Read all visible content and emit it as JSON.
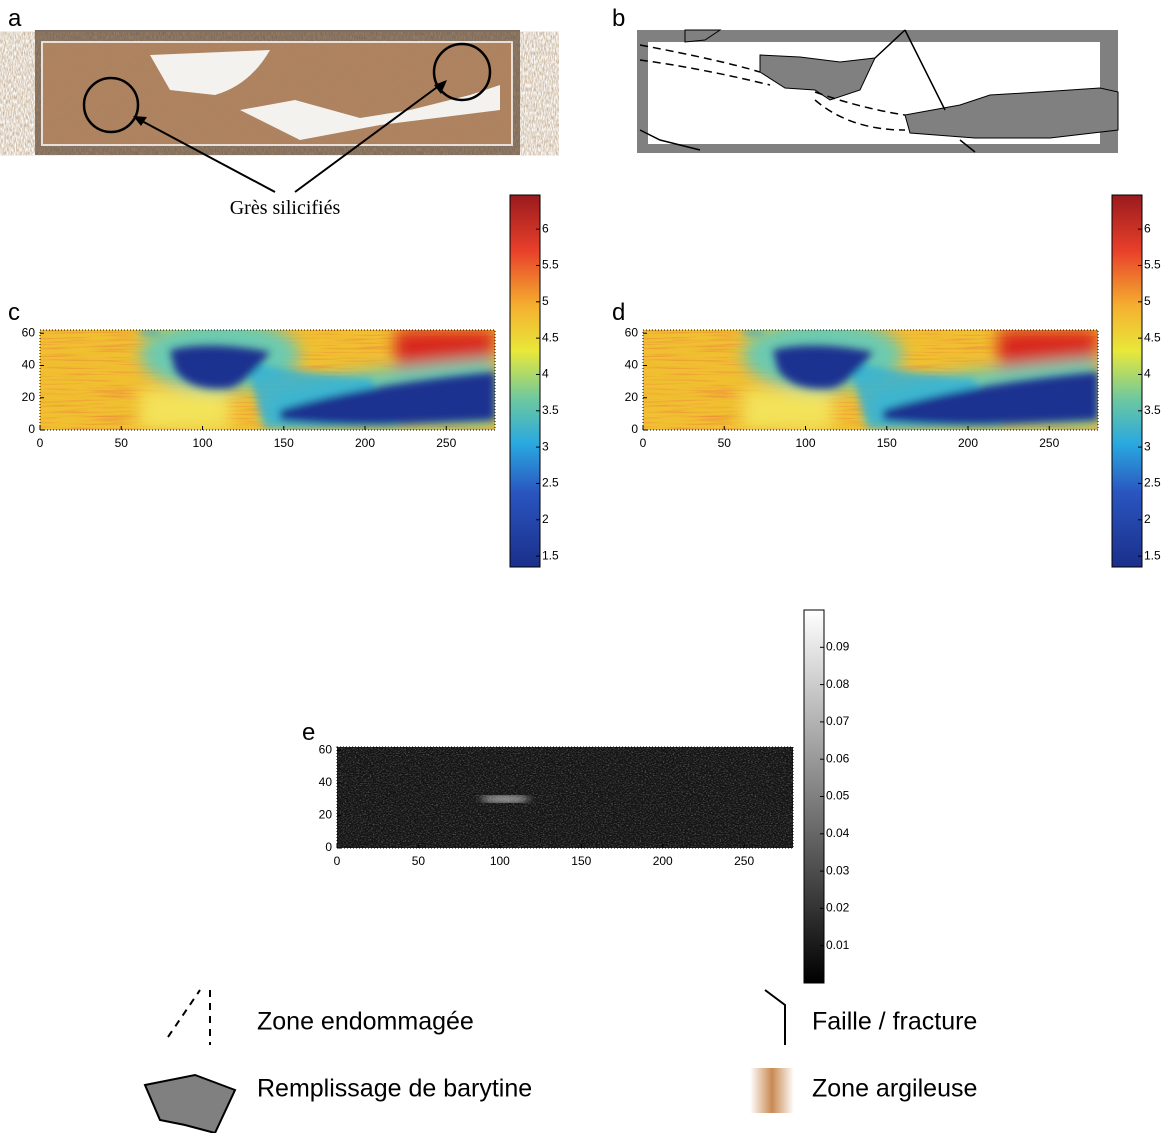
{
  "panels": {
    "a": {
      "label": "a",
      "annotation": "Grès silicifiés"
    },
    "b": {
      "label": "b"
    },
    "c": {
      "label": "c",
      "xlim": [
        0,
        280
      ],
      "ylim": [
        0,
        62
      ],
      "xticks": [
        0,
        50,
        100,
        150,
        200,
        250
      ],
      "yticks": [
        0,
        20,
        40,
        60
      ],
      "colorbar_lim": [
        1.35,
        6.47
      ],
      "colorbar_ticks": [
        1.5,
        2,
        2.5,
        3,
        3.5,
        4,
        4.5,
        5,
        5.5,
        6
      ]
    },
    "d": {
      "label": "d",
      "xlim": [
        0,
        280
      ],
      "ylim": [
        0,
        62
      ],
      "xticks": [
        0,
        50,
        100,
        150,
        200,
        250
      ],
      "yticks": [
        0,
        20,
        40,
        60
      ],
      "colorbar_lim": [
        1.35,
        6.47
      ],
      "colorbar_ticks": [
        1.5,
        2,
        2.5,
        3,
        3.5,
        4,
        4.5,
        5,
        5.5,
        6
      ]
    },
    "e": {
      "label": "e",
      "xlim": [
        0,
        280
      ],
      "ylim": [
        0,
        62
      ],
      "xticks": [
        0,
        50,
        100,
        150,
        200,
        250
      ],
      "yticks": [
        0,
        20,
        40,
        60
      ],
      "colorbar_lim": [
        0,
        0.1
      ],
      "colorbar_ticks": [
        0.01,
        0.02,
        0.03,
        0.04,
        0.05,
        0.06,
        0.07,
        0.08,
        0.09
      ]
    }
  },
  "legend": [
    "Zone endommagée",
    "Faille / fracture",
    "Remplissage de barytine",
    "Zone argileuse"
  ]
}
